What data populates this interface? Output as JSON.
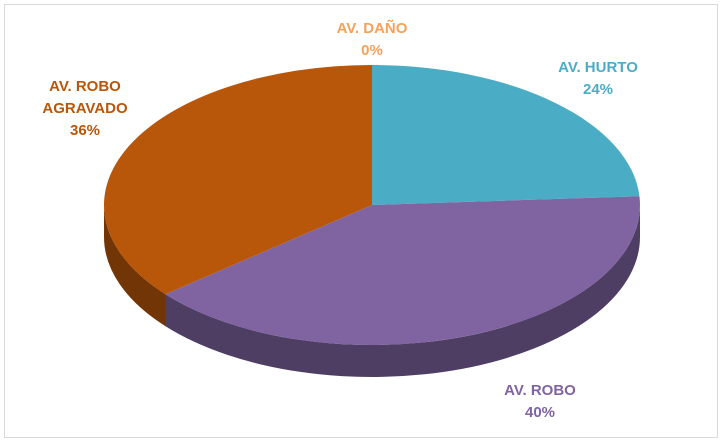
{
  "chart_data": {
    "type": "pie",
    "categories": [
      "AV. DAÑO",
      "AV. HURTO",
      "AV. ROBO",
      "AV. ROBO AGRAVADO"
    ],
    "values": [
      0,
      24,
      40,
      36
    ],
    "value_labels": [
      "0%",
      "24%",
      "40%",
      "36%"
    ],
    "colors": [
      "#f4a25a",
      "#4bacc6",
      "#8064a2",
      "#b8560a"
    ]
  }
}
